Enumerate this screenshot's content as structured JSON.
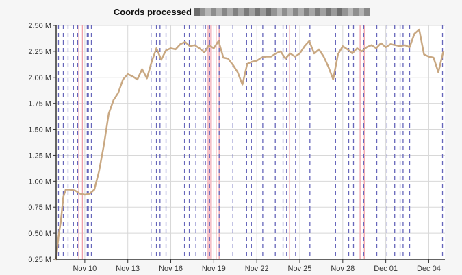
{
  "chart_data": {
    "type": "line",
    "title": "Coords processed",
    "title_suffix_redacted": true,
    "xlabel": "",
    "ylabel": "",
    "x_start": "Nov 08",
    "x_end": "Dec 05",
    "xtick_labels": [
      "Nov 10",
      "Nov 13",
      "Nov 16",
      "Nov 19",
      "Nov 22",
      "Nov 25",
      "Nov 28",
      "Dec 01",
      "Dec 04"
    ],
    "xtick_dates": [
      "2014-11-10",
      "2014-11-13",
      "2014-11-16",
      "2014-11-19",
      "2014-11-22",
      "2014-11-25",
      "2014-11-28",
      "2014-12-01",
      "2014-12-04"
    ],
    "ytick_values": [
      250000,
      500000,
      750000,
      1000000,
      1250000,
      1500000,
      1750000,
      2000000,
      2250000,
      2500000
    ],
    "ytick_labels": [
      "0.25 M",
      "0.50 M",
      "0.75 M",
      "1.00 M",
      "1.25 M",
      "1.50 M",
      "1.75 M",
      "2.00 M",
      "2.25 M",
      "2.50 M"
    ],
    "ylim": [
      250000,
      2500000
    ],
    "grid": true,
    "legend": "none",
    "series": [
      {
        "color": "#c9a882",
        "points": [
          [
            "2014-11-08T00:00",
            250000
          ],
          [
            "2014-11-08T04:00",
            470000
          ],
          [
            "2014-11-08T08:00",
            620000
          ],
          [
            "2014-11-08T12:00",
            850000
          ],
          [
            "2014-11-08T16:00",
            920000
          ],
          [
            "2014-11-09T00:00",
            920000
          ],
          [
            "2014-11-09T08:00",
            910000
          ],
          [
            "2014-11-09T16:00",
            880000
          ],
          [
            "2014-11-10T00:00",
            870000
          ],
          [
            "2014-11-10T08:00",
            880000
          ],
          [
            "2014-11-10T16:00",
            920000
          ],
          [
            "2014-11-11T00:00",
            1100000
          ],
          [
            "2014-11-11T08:00",
            1350000
          ],
          [
            "2014-11-11T16:00",
            1650000
          ],
          [
            "2014-11-12T00:00",
            1780000
          ],
          [
            "2014-11-12T08:00",
            1850000
          ],
          [
            "2014-11-12T16:00",
            1980000
          ],
          [
            "2014-11-13T00:00",
            2030000
          ],
          [
            "2014-11-13T08:00",
            2010000
          ],
          [
            "2014-11-13T16:00",
            1980000
          ],
          [
            "2014-11-14T00:00",
            2080000
          ],
          [
            "2014-11-14T08:00",
            1990000
          ],
          [
            "2014-11-14T16:00",
            2150000
          ],
          [
            "2014-11-15T00:00",
            2280000
          ],
          [
            "2014-11-15T08:00",
            2170000
          ],
          [
            "2014-11-15T16:00",
            2260000
          ],
          [
            "2014-11-16T00:00",
            2280000
          ],
          [
            "2014-11-16T08:00",
            2270000
          ],
          [
            "2014-11-16T16:00",
            2320000
          ],
          [
            "2014-11-17T00:00",
            2340000
          ],
          [
            "2014-11-17T08:00",
            2300000
          ],
          [
            "2014-11-17T16:00",
            2310000
          ],
          [
            "2014-11-18T00:00",
            2280000
          ],
          [
            "2014-11-18T08:00",
            2240000
          ],
          [
            "2014-11-18T16:00",
            2310000
          ],
          [
            "2014-11-19T00:00",
            2280000
          ],
          [
            "2014-11-19T08:00",
            2350000
          ],
          [
            "2014-11-19T16:00",
            2190000
          ],
          [
            "2014-11-20T00:00",
            2180000
          ],
          [
            "2014-11-20T08:00",
            2120000
          ],
          [
            "2014-11-20T16:00",
            2050000
          ],
          [
            "2014-11-21T00:00",
            1930000
          ],
          [
            "2014-11-21T08:00",
            2130000
          ],
          [
            "2014-11-21T16:00",
            2150000
          ],
          [
            "2014-11-22T00:00",
            2160000
          ],
          [
            "2014-11-22T08:00",
            2190000
          ],
          [
            "2014-11-22T16:00",
            2200000
          ],
          [
            "2014-11-23T00:00",
            2200000
          ],
          [
            "2014-11-23T08:00",
            2230000
          ],
          [
            "2014-11-23T16:00",
            2250000
          ],
          [
            "2014-11-24T00:00",
            2180000
          ],
          [
            "2014-11-24T08:00",
            2230000
          ],
          [
            "2014-11-24T16:00",
            2200000
          ],
          [
            "2014-11-25T00:00",
            2230000
          ],
          [
            "2014-11-25T08:00",
            2300000
          ],
          [
            "2014-11-25T16:00",
            2350000
          ],
          [
            "2014-11-26T00:00",
            2230000
          ],
          [
            "2014-11-26T08:00",
            2270000
          ],
          [
            "2014-11-26T16:00",
            2200000
          ],
          [
            "2014-11-27T00:00",
            2100000
          ],
          [
            "2014-11-27T08:00",
            1980000
          ],
          [
            "2014-11-27T16:00",
            2220000
          ],
          [
            "2014-11-28T00:00",
            2300000
          ],
          [
            "2014-11-28T08:00",
            2270000
          ],
          [
            "2014-11-28T16:00",
            2230000
          ],
          [
            "2014-11-29T00:00",
            2280000
          ],
          [
            "2014-11-29T08:00",
            2250000
          ],
          [
            "2014-11-29T16:00",
            2290000
          ],
          [
            "2014-11-30T00:00",
            2310000
          ],
          [
            "2014-11-30T08:00",
            2280000
          ],
          [
            "2014-11-30T16:00",
            2330000
          ],
          [
            "2014-12-01T00:00",
            2290000
          ],
          [
            "2014-12-01T08:00",
            2320000
          ],
          [
            "2014-12-01T16:00",
            2310000
          ],
          [
            "2014-12-02T00:00",
            2300000
          ],
          [
            "2014-12-02T08:00",
            2310000
          ],
          [
            "2014-12-02T16:00",
            2290000
          ],
          [
            "2014-12-03T00:00",
            2420000
          ],
          [
            "2014-12-03T08:00",
            2460000
          ],
          [
            "2014-12-03T16:00",
            2220000
          ],
          [
            "2014-12-04T00:00",
            2200000
          ],
          [
            "2014-12-04T08:00",
            2190000
          ],
          [
            "2014-12-04T16:00",
            2050000
          ],
          [
            "2014-12-05T00:00",
            2240000
          ]
        ]
      }
    ],
    "annotations_blue_dashed": [
      "2014-11-08T04:00",
      "2014-11-08T12:00",
      "2014-11-08T20:00",
      "2014-11-09T05:00",
      "2014-11-09T12:00",
      "2014-11-10T04:00",
      "2014-11-10T06:00",
      "2014-11-10T11:00",
      "2014-11-14T15:00",
      "2014-11-15T00:00",
      "2014-11-15T06:00",
      "2014-11-15T16:00",
      "2014-11-16T23:00",
      "2014-11-17T07:00",
      "2014-11-17T18:00",
      "2014-11-18T06:00",
      "2014-11-18T10:00",
      "2014-11-18T17:00",
      "2014-11-19T09:00",
      "2014-11-20T08:00",
      "2014-11-21T07:00",
      "2014-11-21T15:00",
      "2014-11-22T10:00",
      "2014-11-23T07:00",
      "2014-11-23T20:00",
      "2014-11-24T02:00",
      "2014-11-24T17:00",
      "2014-11-25T17:00",
      "2014-11-27T12:00",
      "2014-11-28T10:00",
      "2014-11-28T18:00",
      "2014-11-29T11:00",
      "2014-11-30T09:00",
      "2014-12-01T02:00",
      "2014-12-01T15:00",
      "2014-12-02T00:00",
      "2014-12-02T05:00",
      "2014-12-02T16:00",
      "2014-12-04T23:00"
    ],
    "annotations_red": [
      "2014-11-09T14:00",
      "2014-11-09T20:00",
      "2014-11-19T04:00",
      "2014-11-19T09:00",
      "2014-11-24T07:00",
      "2014-11-29T05:00",
      "2014-11-29T12:00"
    ],
    "annotations_red_band": {
      "start": "2014-11-18T13:00",
      "end": "2014-11-18T21:00"
    }
  }
}
